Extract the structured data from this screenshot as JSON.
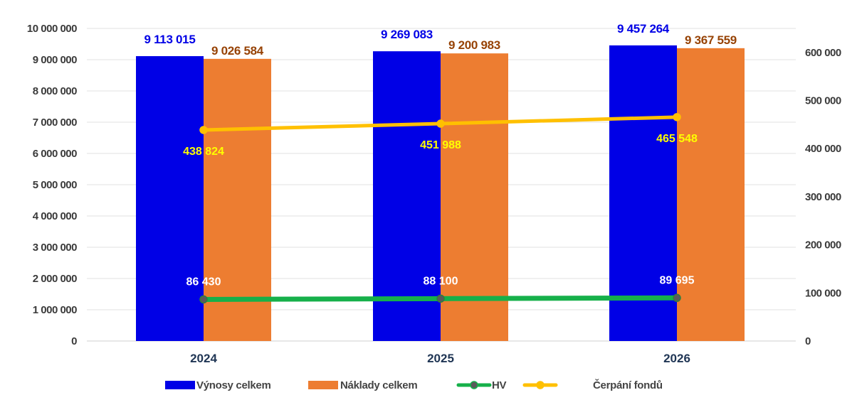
{
  "chart_data": {
    "type": "bar",
    "categories": [
      "2024",
      "2025",
      "2026"
    ],
    "ylim": [
      0,
      10000000
    ],
    "y2lim": [
      0,
      650000
    ],
    "yticks": [
      "0",
      "1 000 000",
      "2 000 000",
      "3 000 000",
      "4 000 000",
      "5 000 000",
      "6 000 000",
      "7 000 000",
      "8 000 000",
      "9 000 000",
      "10 000 000"
    ],
    "y2ticks": [
      "0",
      "100 000",
      "200 000",
      "300 000",
      "400 000",
      "500 000",
      "600 000"
    ],
    "grid": true,
    "legend_position": "bottom",
    "series": [
      {
        "name": "Výnosy celkem",
        "type": "bar",
        "axis": "left",
        "color": "#0000e6",
        "label_color": "#0000e6",
        "values": [
          9113015,
          9269083,
          9457264
        ],
        "labels": [
          "9 113 015",
          "9 269 083",
          "9 457 264"
        ]
      },
      {
        "name": "Náklady celkem",
        "type": "bar",
        "axis": "left",
        "color": "#ed7d31",
        "label_color": "#974306",
        "values": [
          9026584,
          9200983,
          9367559
        ],
        "labels": [
          "9 026 584",
          "9 200 983",
          "9 367 559"
        ]
      },
      {
        "name": "HV",
        "type": "line",
        "axis": "right",
        "color": "#16b04a",
        "marker_color": "#5a5a5a",
        "label_color": "#ffffff",
        "values": [
          86430,
          88100,
          89695
        ],
        "labels": [
          "86 430",
          "88 100",
          "89 695"
        ]
      },
      {
        "name": "Čerpání fondů",
        "type": "line",
        "axis": "right",
        "color": "#ffc000",
        "marker_color": "#ffc000",
        "label_color": "#ffff00",
        "values": [
          438824,
          451988,
          465548
        ],
        "labels": [
          "438 824",
          "451 988",
          "465 548"
        ]
      }
    ]
  }
}
